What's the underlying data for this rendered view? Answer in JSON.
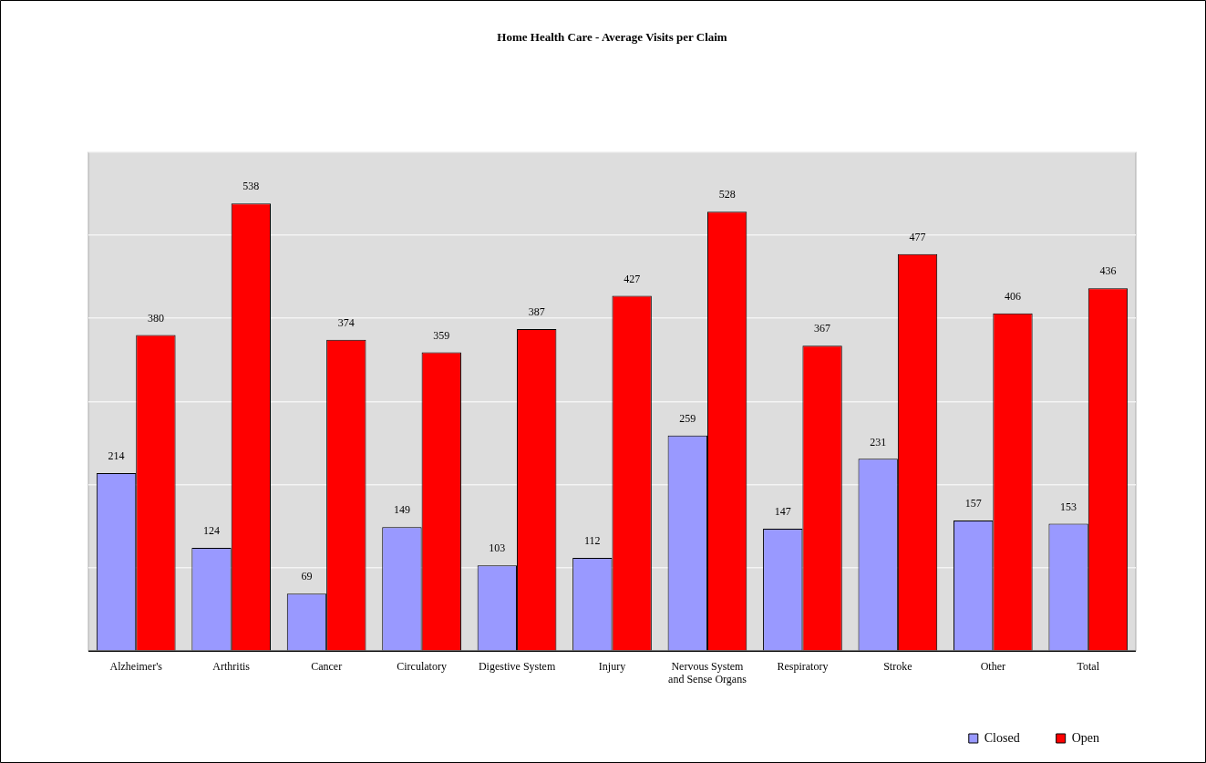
{
  "chart_data": {
    "type": "bar",
    "title": "Home Health Care - Average Visits per Claim",
    "categories": [
      "Alzheimer's",
      "Arthritis",
      "Cancer",
      "Circulatory",
      "Digestive System",
      "Injury",
      "Nervous System and Sense Organs",
      "Respiratory",
      "Stroke",
      "Other",
      "Total"
    ],
    "series": [
      {
        "name": "Closed",
        "color": "#9999ff",
        "values": [
          214,
          124,
          69,
          149,
          103,
          112,
          259,
          147,
          231,
          157,
          153
        ]
      },
      {
        "name": "Open",
        "color": "#ff0000",
        "values": [
          380,
          538,
          374,
          359,
          387,
          427,
          528,
          367,
          477,
          406,
          436
        ]
      }
    ],
    "ylim": [
      0,
      600
    ],
    "yticks": [
      {
        "value": 0,
        "label": null
      },
      {
        "value": 100,
        "label": null
      },
      {
        "value": 200,
        "label": null
      },
      {
        "value": 300,
        "label": null
      },
      {
        "value": 400,
        "label": null
      },
      {
        "value": 500,
        "label": null
      },
      {
        "value": 600,
        "label": null
      }
    ],
    "grid": "y",
    "legend": "bottom right",
    "data_labels": true,
    "tick_labels": "x"
  }
}
